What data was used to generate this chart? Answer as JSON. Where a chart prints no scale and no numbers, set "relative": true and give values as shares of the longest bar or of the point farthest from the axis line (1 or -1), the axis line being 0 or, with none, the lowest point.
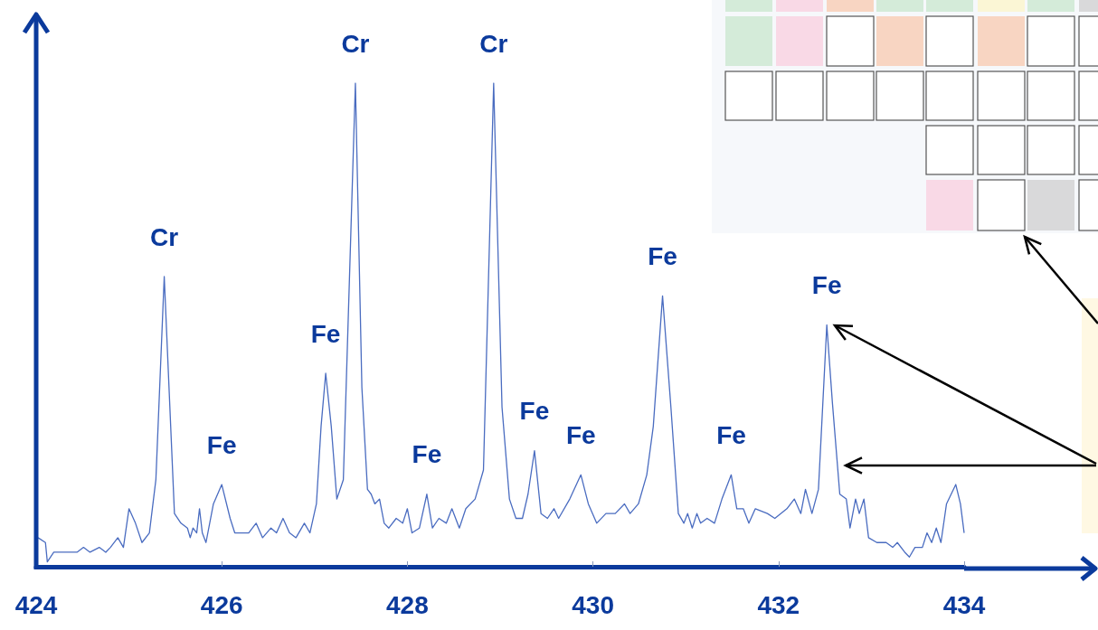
{
  "chart_data": {
    "type": "line",
    "relative": true,
    "color": "#4a6cc0",
    "xlim": [
      424,
      434
    ],
    "xticks": [
      424,
      426,
      428,
      430,
      432,
      434
    ],
    "grid": false,
    "marker": "none",
    "line_style": "solid",
    "x": [
      424.02,
      424.1,
      424.12,
      424.19,
      424.29,
      424.36,
      424.44,
      424.51,
      424.58,
      424.68,
      424.75,
      424.8,
      424.88,
      424.94,
      425.0,
      425.07,
      425.14,
      425.22,
      425.29,
      425.38,
      425.49,
      425.56,
      425.63,
      425.66,
      425.69,
      425.73,
      425.76,
      425.79,
      425.83,
      425.91,
      426.0,
      426.09,
      426.14,
      426.22,
      426.29,
      426.37,
      426.44,
      426.53,
      426.59,
      426.66,
      426.73,
      426.8,
      426.89,
      426.95,
      427.02,
      427.07,
      427.12,
      427.18,
      427.24,
      427.31,
      427.44,
      427.51,
      427.57,
      427.61,
      427.65,
      427.7,
      427.75,
      427.8,
      427.88,
      427.95,
      428.0,
      428.05,
      428.13,
      428.21,
      428.27,
      428.34,
      428.42,
      428.48,
      428.56,
      428.63,
      428.73,
      428.82,
      428.93,
      429.02,
      429.1,
      429.17,
      429.24,
      429.3,
      429.37,
      429.44,
      429.51,
      429.58,
      429.63,
      429.75,
      429.87,
      429.95,
      430.04,
      430.14,
      430.24,
      430.34,
      430.4,
      430.49,
      430.58,
      430.65,
      430.75,
      430.84,
      430.92,
      430.98,
      431.02,
      431.07,
      431.12,
      431.16,
      431.23,
      431.31,
      431.39,
      431.49,
      431.55,
      431.62,
      431.68,
      431.75,
      431.88,
      431.96,
      432.09,
      432.17,
      432.24,
      432.29,
      432.36,
      432.43,
      432.52,
      432.58,
      432.66,
      432.73,
      432.77,
      432.83,
      432.87,
      432.92,
      432.97,
      433.06,
      433.16,
      433.23,
      433.28,
      433.36,
      433.41,
      433.47,
      433.55,
      433.6,
      433.65,
      433.7,
      433.75,
      433.81,
      433.91,
      433.96,
      434.0
    ],
    "values": [
      0.06,
      0.05,
      0.01,
      0.03,
      0.03,
      0.03,
      0.03,
      0.04,
      0.03,
      0.04,
      0.03,
      0.04,
      0.06,
      0.04,
      0.12,
      0.09,
      0.05,
      0.07,
      0.18,
      0.6,
      0.11,
      0.09,
      0.08,
      0.06,
      0.08,
      0.07,
      0.12,
      0.07,
      0.05,
      0.13,
      0.17,
      0.1,
      0.07,
      0.07,
      0.07,
      0.09,
      0.06,
      0.08,
      0.07,
      0.1,
      0.07,
      0.06,
      0.09,
      0.07,
      0.13,
      0.29,
      0.4,
      0.29,
      0.14,
      0.18,
      1,
      0.37,
      0.16,
      0.15,
      0.13,
      0.14,
      0.09,
      0.08,
      0.1,
      0.09,
      0.12,
      0.07,
      0.08,
      0.15,
      0.08,
      0.1,
      0.09,
      0.12,
      0.08,
      0.12,
      0.14,
      0.2,
      1,
      0.33,
      0.14,
      0.1,
      0.1,
      0.15,
      0.24,
      0.11,
      0.1,
      0.12,
      0.1,
      0.14,
      0.19,
      0.13,
      0.09,
      0.11,
      0.11,
      0.13,
      0.11,
      0.13,
      0.19,
      0.29,
      0.56,
      0.33,
      0.11,
      0.09,
      0.11,
      0.08,
      0.11,
      0.09,
      0.1,
      0.09,
      0.14,
      0.19,
      0.12,
      0.12,
      0.09,
      0.12,
      0.11,
      0.1,
      0.12,
      0.14,
      0.11,
      0.16,
      0.11,
      0.16,
      0.5,
      0.34,
      0.15,
      0.14,
      0.08,
      0.14,
      0.11,
      0.14,
      0.06,
      0.05,
      0.05,
      0.04,
      0.05,
      0.03,
      0.02,
      0.04,
      0.04,
      0.07,
      0.05,
      0.08,
      0.05,
      0.13,
      0.17,
      0.13,
      0.07
    ],
    "annotations": [
      {
        "text": "Cr",
        "x": 425.38,
        "y": 0.6
      },
      {
        "text": "Fe",
        "x": 426.0,
        "y": 0.17
      },
      {
        "text": "Fe",
        "x": 427.12,
        "y": 0.4
      },
      {
        "text": "Cr",
        "x": 427.44,
        "y": 1
      },
      {
        "text": "Fe",
        "x": 428.21,
        "y": 0.15
      },
      {
        "text": "Cr",
        "x": 428.93,
        "y": 1
      },
      {
        "text": "Fe",
        "x": 429.37,
        "y": 0.24
      },
      {
        "text": "Fe",
        "x": 429.87,
        "y": 0.19
      },
      {
        "text": "Fe",
        "x": 430.75,
        "y": 0.56
      },
      {
        "text": "Fe",
        "x": 431.49,
        "y": 0.19
      },
      {
        "text": "Fe",
        "x": 432.52,
        "y": 0.5
      }
    ]
  }
}
